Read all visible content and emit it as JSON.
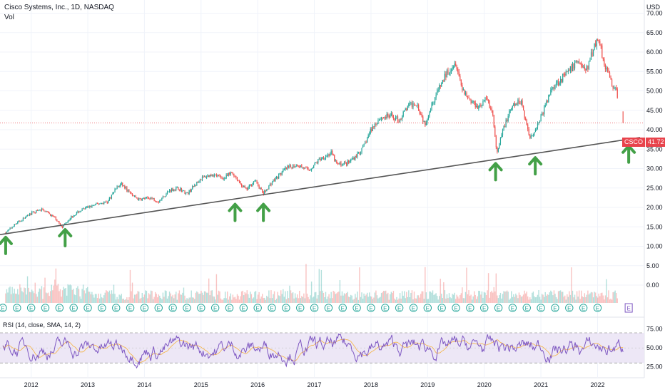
{
  "header": {
    "title": "Cisco Systems, Inc., 1D, NASDAQ",
    "sub": "Vol"
  },
  "axis": {
    "currency": "USD"
  },
  "last_price": {
    "symbol": "CSCO",
    "value": "41.72"
  },
  "colors": {
    "up": "#26a69a",
    "down": "#ef5350",
    "trendline": "#555555",
    "arrow": "#43a047",
    "rsi_line": "#7e57c2",
    "rsi_sma": "#f5b342",
    "rsi_band": "#ede7f6",
    "earnings": "#26a69a",
    "last_price_line": "#e8434c"
  },
  "chart_data": {
    "type": "candlestick",
    "price_axis": {
      "ylim": [
        0,
        75
      ],
      "ticks": [
        "0.00",
        "5.00",
        "10.00",
        "15.00",
        "20.00",
        "25.00",
        "30.00",
        "35.00",
        "40.00",
        "45.00",
        "50.00",
        "55.00",
        "60.00",
        "65.00",
        "70.00"
      ]
    },
    "time_axis": {
      "ticks": [
        "2012",
        "2013",
        "2014",
        "2015",
        "2016",
        "2017",
        "2018",
        "2019",
        "2020",
        "2021",
        "2022"
      ]
    },
    "price_path": [
      [
        2011.55,
        13.5
      ],
      [
        2011.7,
        15.5
      ],
      [
        2011.85,
        17.0
      ],
      [
        2012.0,
        18.5
      ],
      [
        2012.2,
        19.5
      ],
      [
        2012.4,
        17.5
      ],
      [
        2012.55,
        15.0
      ],
      [
        2012.7,
        17.5
      ],
      [
        2012.85,
        19.0
      ],
      [
        2013.0,
        20.0
      ],
      [
        2013.2,
        21.0
      ],
      [
        2013.35,
        21.5
      ],
      [
        2013.5,
        25.0
      ],
      [
        2013.6,
        26.0
      ],
      [
        2013.75,
        23.5
      ],
      [
        2013.9,
        22.0
      ],
      [
        2014.1,
        22.5
      ],
      [
        2014.25,
        21.5
      ],
      [
        2014.45,
        24.5
      ],
      [
        2014.6,
        25.0
      ],
      [
        2014.75,
        23.5
      ],
      [
        2015.0,
        27.5
      ],
      [
        2015.2,
        28.5
      ],
      [
        2015.4,
        27.5
      ],
      [
        2015.55,
        29.0
      ],
      [
        2015.7,
        26.0
      ],
      [
        2015.8,
        24.5
      ],
      [
        2015.95,
        27.0
      ],
      [
        2016.1,
        23.5
      ],
      [
        2016.25,
        26.5
      ],
      [
        2016.5,
        30.0
      ],
      [
        2016.7,
        31.0
      ],
      [
        2016.9,
        29.5
      ],
      [
        2017.1,
        32.5
      ],
      [
        2017.3,
        34.0
      ],
      [
        2017.4,
        31.0
      ],
      [
        2017.6,
        31.5
      ],
      [
        2017.85,
        35.0
      ],
      [
        2018.0,
        40.0
      ],
      [
        2018.15,
        43.0
      ],
      [
        2018.35,
        43.5
      ],
      [
        2018.5,
        42.5
      ],
      [
        2018.65,
        46.0
      ],
      [
        2018.8,
        47.0
      ],
      [
        2018.95,
        41.5
      ],
      [
        2019.1,
        47.5
      ],
      [
        2019.35,
        55.0
      ],
      [
        2019.5,
        57.5
      ],
      [
        2019.6,
        51.0
      ],
      [
        2019.75,
        47.5
      ],
      [
        2019.9,
        46.0
      ],
      [
        2020.05,
        48.0
      ],
      [
        2020.15,
        44.0
      ],
      [
        2020.22,
        33.5
      ],
      [
        2020.35,
        41.0
      ],
      [
        2020.5,
        46.0
      ],
      [
        2020.65,
        47.5
      ],
      [
        2020.8,
        38.0
      ],
      [
        2020.9,
        40.0
      ],
      [
        2021.05,
        45.0
      ],
      [
        2021.2,
        51.0
      ],
      [
        2021.35,
        53.0
      ],
      [
        2021.5,
        55.0
      ],
      [
        2021.65,
        58.0
      ],
      [
        2021.8,
        55.0
      ],
      [
        2021.95,
        62.0
      ],
      [
        2022.03,
        63.5
      ],
      [
        2022.1,
        58.0
      ],
      [
        2022.25,
        52.0
      ],
      [
        2022.35,
        49.0
      ]
    ],
    "trendline": {
      "from": [
        2011.45,
        13.0
      ],
      "to": [
        2022.75,
        38.0
      ]
    },
    "arrows": [
      {
        "date": 2011.55,
        "tip_price": 12.5
      },
      {
        "date": 2012.6,
        "tip_price": 14.5
      },
      {
        "date": 2015.6,
        "tip_price": 21.0
      },
      {
        "date": 2016.1,
        "tip_price": 21.0
      },
      {
        "date": 2020.2,
        "tip_price": 31.5
      },
      {
        "date": 2020.9,
        "tip_price": 33.0
      },
      {
        "date": 2022.55,
        "tip_price": 36.0
      }
    ],
    "earnings_marker": "E",
    "rsi": {
      "label": "RSI (14, close, SMA, 14, 2)",
      "ylim": [
        18,
        88
      ],
      "band": [
        30,
        70
      ],
      "ticks": [
        "75.00",
        "50.00",
        "25.00"
      ]
    }
  }
}
